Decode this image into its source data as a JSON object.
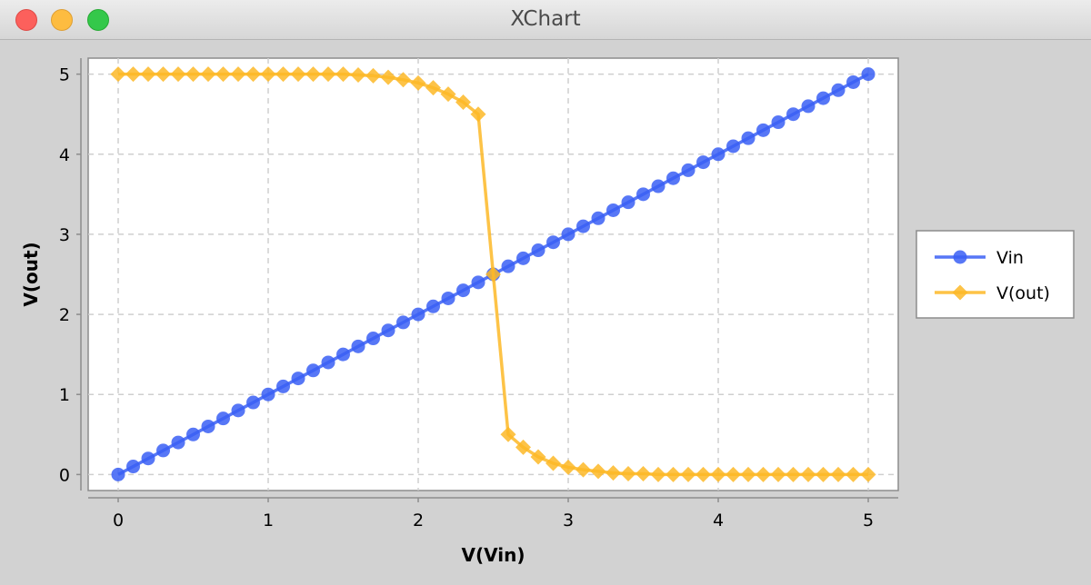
{
  "window": {
    "title": "XChart"
  },
  "chart_data": {
    "type": "line",
    "title": "",
    "xlabel": "V(Vin)",
    "ylabel": "V(out)",
    "xlim": [
      -0.2,
      5.2
    ],
    "ylim": [
      -0.2,
      5.2
    ],
    "x_ticks": [
      "0",
      "1",
      "2",
      "3",
      "4",
      "5"
    ],
    "y_ticks": [
      "0",
      "1",
      "2",
      "3",
      "4",
      "5"
    ],
    "grid": true,
    "legend_position": "right",
    "x": [
      0.0,
      0.1,
      0.2,
      0.3,
      0.4,
      0.5,
      0.6,
      0.7,
      0.8,
      0.9,
      1.0,
      1.1,
      1.2,
      1.3,
      1.4,
      1.5,
      1.6,
      1.7,
      1.8,
      1.9,
      2.0,
      2.1,
      2.2,
      2.3,
      2.4,
      2.5,
      2.6,
      2.7,
      2.8,
      2.9,
      3.0,
      3.1,
      3.2,
      3.3,
      3.4,
      3.5,
      3.6,
      3.7,
      3.8,
      3.9,
      4.0,
      4.1,
      4.2,
      4.3,
      4.4,
      4.5,
      4.6,
      4.7,
      4.8,
      4.9,
      5.0
    ],
    "series": [
      {
        "name": "Vin",
        "color": "#3a5ff5",
        "marker": "circle",
        "values": [
          0.0,
          0.1,
          0.2,
          0.3,
          0.4,
          0.5,
          0.6,
          0.7,
          0.8,
          0.9,
          1.0,
          1.1,
          1.2,
          1.3,
          1.4,
          1.5,
          1.6,
          1.7,
          1.8,
          1.9,
          2.0,
          2.1,
          2.2,
          2.3,
          2.4,
          2.5,
          2.6,
          2.7,
          2.8,
          2.9,
          3.0,
          3.1,
          3.2,
          3.3,
          3.4,
          3.5,
          3.6,
          3.7,
          3.8,
          3.9,
          4.0,
          4.1,
          4.2,
          4.3,
          4.4,
          4.5,
          4.6,
          4.7,
          4.8,
          4.9,
          5.0
        ]
      },
      {
        "name": "V(out)",
        "color": "#fdb827",
        "marker": "diamond",
        "values": [
          5.0,
          5.0,
          5.0,
          5.0,
          5.0,
          5.0,
          5.0,
          5.0,
          5.0,
          5.0,
          5.0,
          5.0,
          5.0,
          5.0,
          5.0,
          5.0,
          4.99,
          4.98,
          4.96,
          4.93,
          4.89,
          4.83,
          4.75,
          4.65,
          4.5,
          2.5,
          0.5,
          0.34,
          0.22,
          0.14,
          0.09,
          0.06,
          0.04,
          0.02,
          0.01,
          0.01,
          0.0,
          0.0,
          0.0,
          0.0,
          0.0,
          0.0,
          0.0,
          0.0,
          0.0,
          0.0,
          0.0,
          0.0,
          0.0,
          0.0,
          0.0
        ]
      }
    ]
  }
}
